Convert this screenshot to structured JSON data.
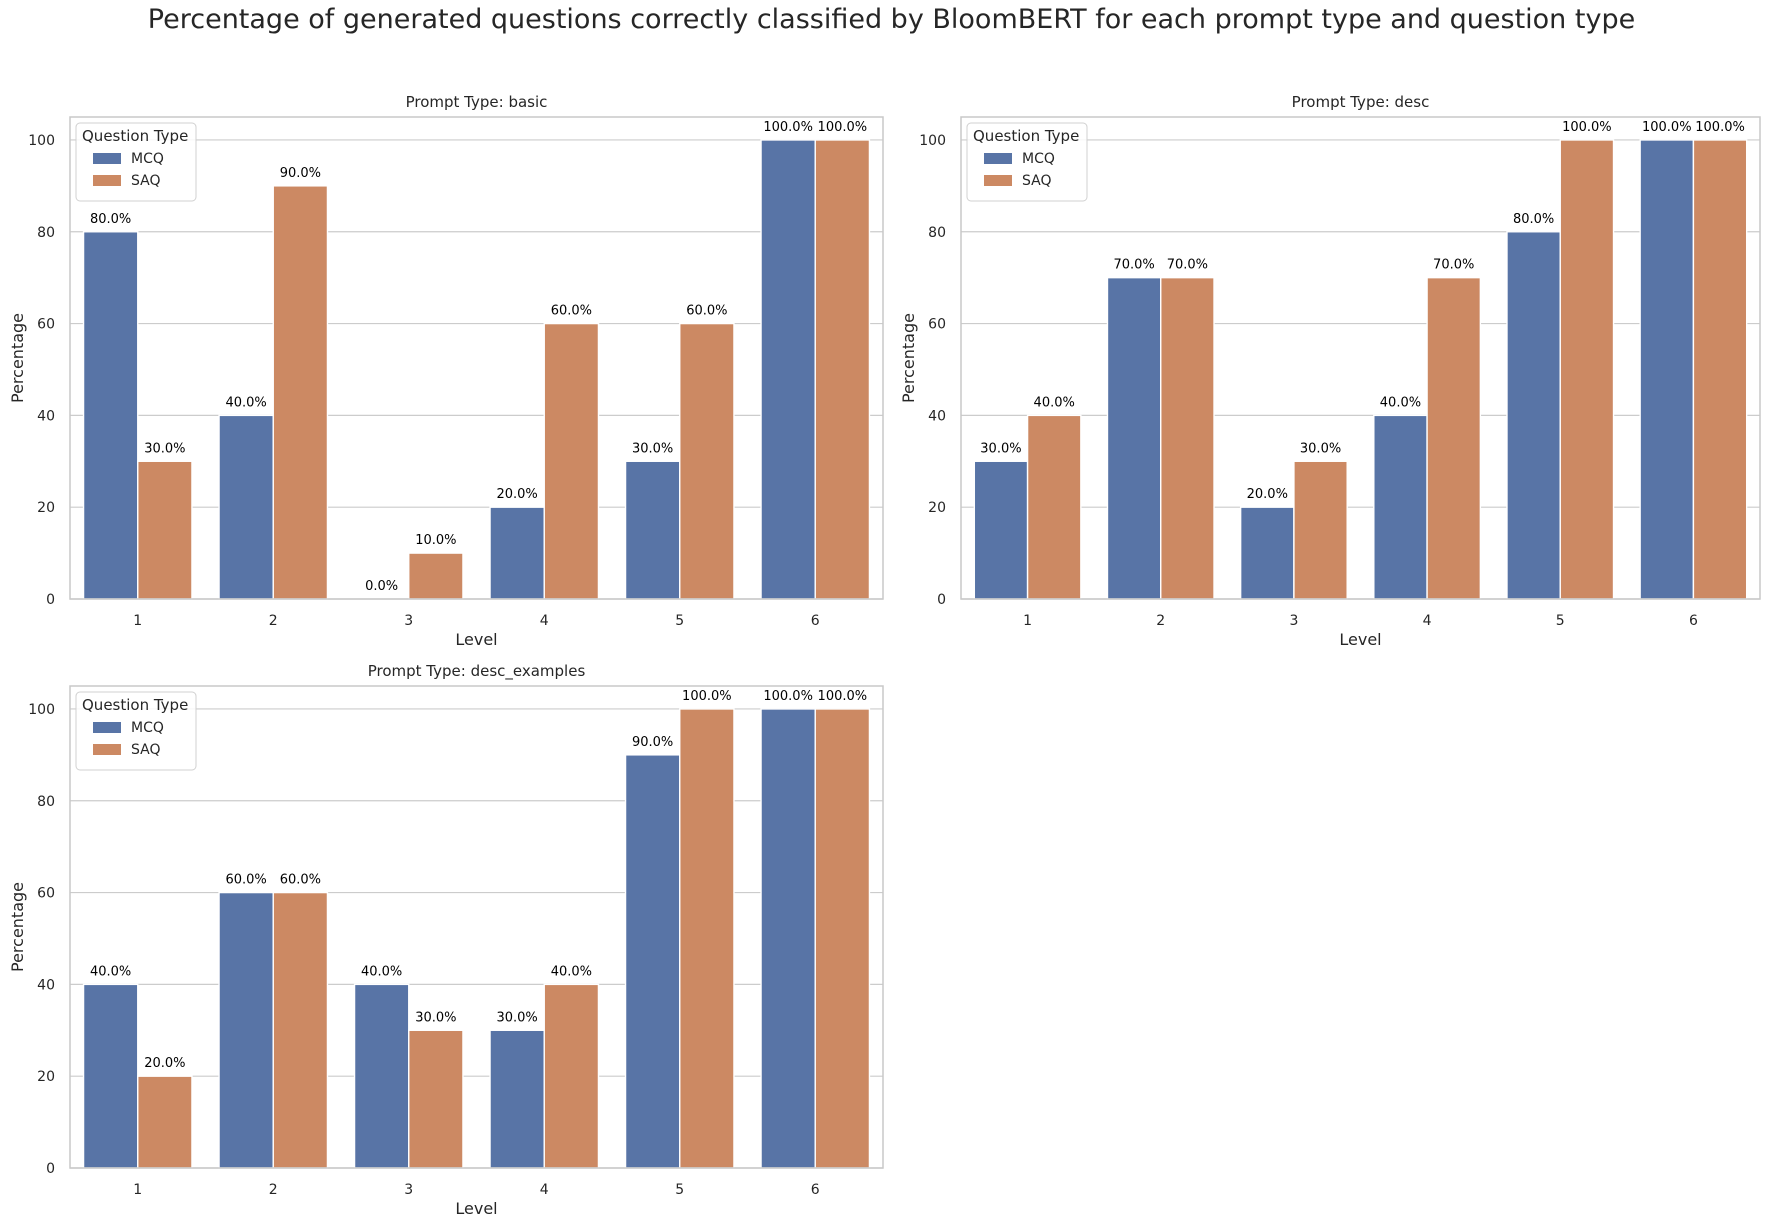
{
  "suptitle": "Percentage of generated questions correctly classified by BloomBERT for each prompt type and question type",
  "colors": {
    "MCQ": "#5874a6",
    "SAQ": "#cc8963",
    "grid": "#cccccc",
    "axes": "#c8c8c8",
    "text": "#262626",
    "label": "#000000"
  },
  "chart_data": [
    {
      "type": "bar",
      "title": "Prompt Type: basic",
      "xlabel": "Level",
      "ylabel": "Percentage",
      "categories": [
        "1",
        "2",
        "3",
        "4",
        "5",
        "6"
      ],
      "yticks": [
        0,
        20,
        40,
        60,
        80,
        100
      ],
      "ylim": [
        0,
        105
      ],
      "legend": {
        "title": "Question Type",
        "location": "top-left",
        "entries": [
          "MCQ",
          "SAQ"
        ]
      },
      "grid": "y",
      "series": [
        {
          "name": "MCQ",
          "values": [
            80,
            40,
            0,
            20,
            30,
            100
          ],
          "labels": [
            "80.0%",
            "40.0%",
            "0.0%",
            "20.0%",
            "30.0%",
            "100.0%"
          ]
        },
        {
          "name": "SAQ",
          "values": [
            30,
            90,
            10,
            60,
            60,
            100
          ],
          "labels": [
            "30.0%",
            "90.0%",
            "10.0%",
            "60.0%",
            "60.0%",
            "100.0%"
          ]
        }
      ]
    },
    {
      "type": "bar",
      "title": "Prompt Type: desc",
      "xlabel": "Level",
      "ylabel": "Percentage",
      "categories": [
        "1",
        "2",
        "3",
        "4",
        "5",
        "6"
      ],
      "yticks": [
        0,
        20,
        40,
        60,
        80,
        100
      ],
      "ylim": [
        0,
        105
      ],
      "legend": {
        "title": "Question Type",
        "location": "top-left",
        "entries": [
          "MCQ",
          "SAQ"
        ]
      },
      "grid": "y",
      "series": [
        {
          "name": "MCQ",
          "values": [
            30,
            70,
            20,
            40,
            80,
            100
          ],
          "labels": [
            "30.0%",
            "70.0%",
            "20.0%",
            "40.0%",
            "80.0%",
            "100.0%"
          ]
        },
        {
          "name": "SAQ",
          "values": [
            40,
            70,
            30,
            70,
            100,
            100
          ],
          "labels": [
            "40.0%",
            "70.0%",
            "30.0%",
            "70.0%",
            "100.0%",
            "100.0%"
          ]
        }
      ]
    },
    {
      "type": "bar",
      "title": "Prompt Type: desc_examples",
      "xlabel": "Level",
      "ylabel": "Percentage",
      "categories": [
        "1",
        "2",
        "3",
        "4",
        "5",
        "6"
      ],
      "yticks": [
        0,
        20,
        40,
        60,
        80,
        100
      ],
      "ylim": [
        0,
        105
      ],
      "legend": {
        "title": "Question Type",
        "location": "top-left",
        "entries": [
          "MCQ",
          "SAQ"
        ]
      },
      "grid": "y",
      "series": [
        {
          "name": "MCQ",
          "values": [
            40,
            60,
            40,
            30,
            90,
            100
          ],
          "labels": [
            "40.0%",
            "60.0%",
            "40.0%",
            "30.0%",
            "90.0%",
            "100.0%"
          ]
        },
        {
          "name": "SAQ",
          "values": [
            20,
            60,
            30,
            40,
            100,
            100
          ],
          "labels": [
            "20.0%",
            "60.0%",
            "30.0%",
            "40.0%",
            "100.0%",
            "100.0%"
          ]
        }
      ]
    }
  ]
}
